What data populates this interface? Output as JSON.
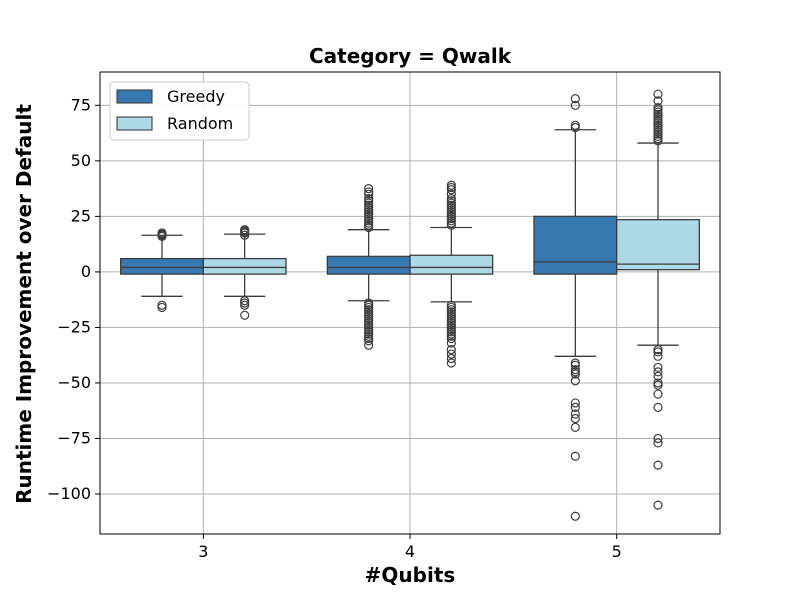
{
  "chart_data": {
    "type": "box",
    "title": "Category = Qwalk",
    "xlabel": "#Qubits",
    "ylabel": "Runtime Improvement over Default",
    "categories": [
      "3",
      "4",
      "5"
    ],
    "ylim": [
      -118,
      90
    ],
    "yticks": [
      75,
      50,
      25,
      0,
      -25,
      -50,
      -75,
      -100
    ],
    "grid": true,
    "legend_position": "top-left",
    "series": [
      {
        "name": "Greedy",
        "color": "#3878b0",
        "boxes": [
          {
            "category": "3",
            "q1": -1,
            "median": 2,
            "q3": 6,
            "whisker_low": -11,
            "whisker_high": 16.5,
            "outliers": [
              -15,
              -16,
              16,
              16.5,
              17,
              17.5
            ]
          },
          {
            "category": "4",
            "q1": -1,
            "median": 2,
            "q3": 7,
            "whisker_low": -13,
            "whisker_high": 19,
            "outliers": [
              20,
              21,
              22,
              23,
              24,
              25,
              26,
              27,
              28,
              29,
              30,
              31,
              32,
              33,
              35,
              36,
              37.5,
              -14,
              -15,
              -16,
              -17,
              -18,
              -19,
              -20,
              -21,
              -22,
              -23,
              -24,
              -25,
              -26,
              -27,
              -28,
              -29,
              -30,
              -31,
              -33
            ]
          },
          {
            "category": "5",
            "q1": -1,
            "median": 4.5,
            "q3": 25,
            "whisker_low": -38,
            "whisker_high": 64,
            "outliers": [
              65,
              66,
              75,
              78,
              -41,
              -42,
              -44,
              -45,
              -46,
              -49,
              -59,
              -61,
              -64,
              -66,
              -70,
              -83,
              -110
            ]
          }
        ]
      },
      {
        "name": "Random",
        "color": "#add8e6",
        "boxes": [
          {
            "category": "3",
            "q1": -1,
            "median": 2,
            "q3": 6,
            "whisker_low": -11,
            "whisker_high": 17,
            "outliers": [
              -13,
              -14,
              -15,
              -19.5,
              16.5,
              17.5,
              18,
              18.5,
              19
            ]
          },
          {
            "category": "4",
            "q1": -1,
            "median": 2,
            "q3": 7.5,
            "whisker_low": -13.5,
            "whisker_high": 20,
            "outliers": [
              21,
              22,
              23,
              24,
              25,
              26,
              27,
              28,
              29,
              30,
              31,
              32,
              33,
              35,
              37,
              38,
              39,
              -15,
              -16,
              -17,
              -18,
              -19,
              -20,
              -21,
              -22,
              -23,
              -24,
              -25,
              -26,
              -27,
              -28,
              -29,
              -30,
              -32,
              -35,
              -37,
              -39,
              -41
            ]
          },
          {
            "category": "5",
            "q1": 1,
            "median": 3.5,
            "q3": 23.5,
            "whisker_low": -33,
            "whisker_high": 58,
            "outliers": [
              59,
              60,
              61,
              62,
              63,
              64,
              65,
              66,
              67,
              68,
              69,
              70,
              71,
              72,
              73,
              74,
              77,
              80,
              -35,
              -36,
              -38,
              -43,
              -45,
              -47,
              -50,
              -51,
              -55,
              -61,
              -75,
              -77,
              -87,
              -105
            ]
          }
        ]
      }
    ]
  }
}
